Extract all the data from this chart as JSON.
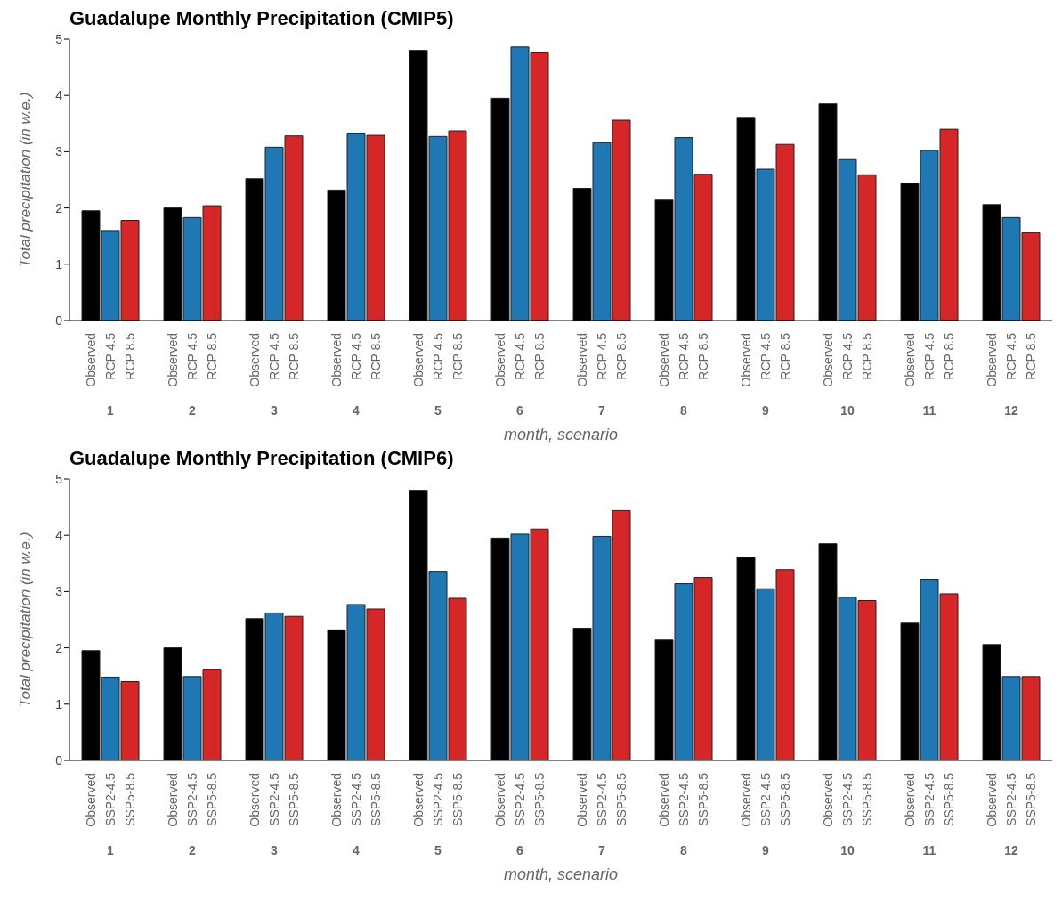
{
  "chart_data": [
    {
      "type": "bar",
      "title": "Guadalupe Monthly Precipitation (CMIP5)",
      "xlabel": "month, scenario",
      "ylabel": "Total precipitation (in w.e.)",
      "categories": [
        "1",
        "2",
        "3",
        "4",
        "5",
        "6",
        "7",
        "8",
        "9",
        "10",
        "11",
        "12"
      ],
      "ylim": [
        0,
        5
      ],
      "yticks": [
        0,
        1,
        2,
        3,
        4,
        5
      ],
      "grid": false,
      "legend": false,
      "series": [
        {
          "name": "Observed",
          "color": "#000000",
          "values": [
            1.95,
            2.0,
            2.52,
            2.32,
            4.8,
            3.95,
            2.35,
            2.14,
            3.61,
            3.85,
            2.44,
            2.06
          ]
        },
        {
          "name": "RCP 4.5",
          "color": "#1f77b4",
          "values": [
            1.6,
            1.83,
            3.08,
            3.33,
            3.27,
            4.86,
            3.16,
            3.25,
            2.69,
            2.86,
            3.02,
            1.83
          ]
        },
        {
          "name": "RCP 8.5",
          "color": "#d62728",
          "values": [
            1.78,
            2.04,
            3.28,
            3.29,
            3.37,
            4.77,
            3.56,
            2.6,
            3.13,
            2.59,
            3.4,
            1.56
          ]
        }
      ]
    },
    {
      "type": "bar",
      "title": "Guadalupe Monthly Precipitation (CMIP6)",
      "xlabel": "month, scenario",
      "ylabel": "Total precipitation (in w.e.)",
      "categories": [
        "1",
        "2",
        "3",
        "4",
        "5",
        "6",
        "7",
        "8",
        "9",
        "10",
        "11",
        "12"
      ],
      "ylim": [
        0,
        5
      ],
      "yticks": [
        0,
        1,
        2,
        3,
        4,
        5
      ],
      "grid": false,
      "legend": false,
      "series": [
        {
          "name": "Observed",
          "color": "#000000",
          "values": [
            1.95,
            2.0,
            2.52,
            2.32,
            4.8,
            3.95,
            2.35,
            2.14,
            3.61,
            3.85,
            2.44,
            2.06
          ]
        },
        {
          "name": "SSP2-4.5",
          "color": "#1f77b4",
          "values": [
            1.48,
            1.49,
            2.62,
            2.77,
            3.36,
            4.02,
            3.98,
            3.14,
            3.05,
            2.9,
            3.22,
            1.49
          ]
        },
        {
          "name": "SSP5-8.5",
          "color": "#d62728",
          "values": [
            1.4,
            1.62,
            2.56,
            2.69,
            2.88,
            4.11,
            4.44,
            3.25,
            3.39,
            2.84,
            2.96,
            1.49
          ]
        }
      ]
    }
  ]
}
